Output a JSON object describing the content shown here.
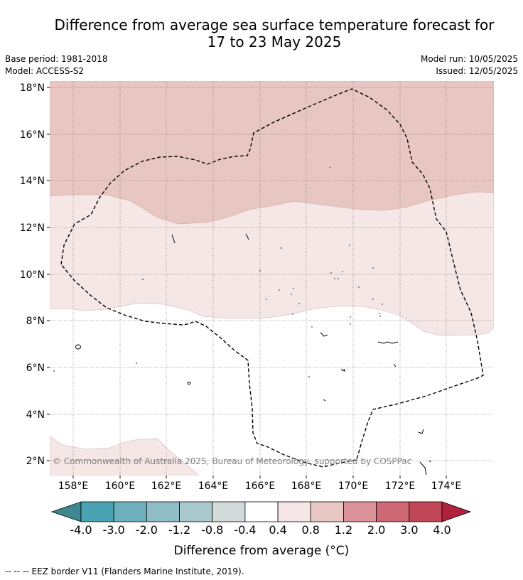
{
  "title_line1": "Difference from average sea surface temperature forecast for",
  "title_line2": "17 to 23 May 2025",
  "base_period": "Base period: 1981-2018",
  "model": "Model: ACCESS-S2",
  "model_run": "Model run: 10/05/2025",
  "issued": "Issued: 12/05/2025",
  "copyright": "© Commonwealth of Australia 2025, Bureau of Meteorology, supported by COSPPac",
  "lat_ticks": [
    "18°N",
    "16°N",
    "14°N",
    "12°N",
    "10°N",
    "8°N",
    "6°N",
    "4°N",
    "2°N"
  ],
  "lon_ticks": [
    "158°E",
    "160°E",
    "162°E",
    "164°E",
    "166°E",
    "168°E",
    "170°E",
    "172°E",
    "174°E"
  ],
  "colorbar": {
    "ticks": [
      "-4.0",
      "-3.0",
      "-2.0",
      "-1.2",
      "-0.8",
      "-0.4",
      "0.4",
      "0.8",
      "1.2",
      "2.0",
      "3.0",
      "4.0"
    ],
    "colors": [
      "#4aa3b3",
      "#6fb0bf",
      "#8fbcc6",
      "#aac9cd",
      "#d2dadb",
      "#ffffff",
      "#f5e6e5",
      "#e9c7c3",
      "#dc939a",
      "#cd6774",
      "#c14656"
    ],
    "under_color": "#3e8791",
    "over_color": "#b1223d",
    "label": "Difference from average (°C)"
  },
  "legend_footer": "EEZ border V11 (Flanders Marine Institute, 2019).",
  "legend_footer_prefix": "--  --  --"
}
